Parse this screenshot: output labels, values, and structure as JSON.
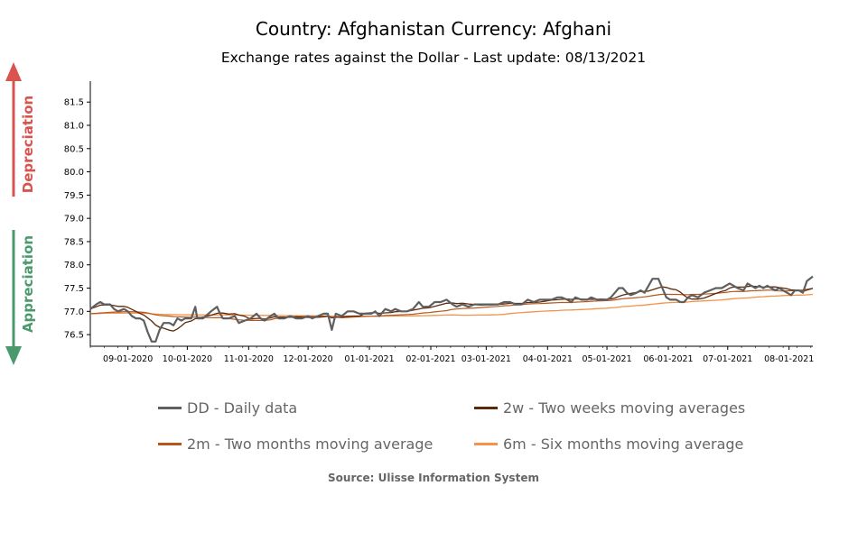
{
  "header": {
    "title": "Country: Afghanistan Currency: Afghani",
    "subtitle": "Exchange rates against the Dollar - Last update: 08/13/2021"
  },
  "indicators": {
    "depreciation": "Depreciation",
    "appreciation": "Appreciation",
    "depreciation_color": "#d9534f",
    "appreciation_color": "#4a9a6e"
  },
  "source": "Source: Ulisse Information System",
  "chart_data": {
    "type": "line",
    "title": "Country: Afghanistan Currency: Afghani",
    "subtitle": "Exchange rates against the Dollar - Last update: 08/13/2021",
    "xlabel": "",
    "ylabel": "",
    "x_range": [
      "2020-08-13",
      "2021-08-13"
    ],
    "ylim": [
      76.25,
      81.95
    ],
    "y_ticks": [
      76.5,
      77.0,
      77.5,
      78.0,
      78.5,
      79.0,
      79.5,
      80.0,
      80.5,
      81.0,
      81.5
    ],
    "y_tick_labels": [
      "76.5",
      "77.0",
      "77.5",
      "78.0",
      "78.5",
      "79.0",
      "79.5",
      "80.0",
      "80.5",
      "81.0",
      "81.5"
    ],
    "x_ticks": [
      "2020-09-01",
      "2020-10-01",
      "2020-11-01",
      "2020-12-01",
      "2021-01-01",
      "2021-02-01",
      "2021-03-01",
      "2021-04-01",
      "2021-05-01",
      "2021-06-01",
      "2021-07-01",
      "2021-08-01"
    ],
    "x_tick_labels": [
      "09-01-2020",
      "10-01-2020",
      "11-01-2020",
      "12-01-2020",
      "01-01-2021",
      "02-01-2021",
      "03-01-2021",
      "04-01-2021",
      "05-01-2021",
      "06-01-2021",
      "07-01-2021",
      "08-01-2021"
    ],
    "grid": false,
    "legend_position": "bottom",
    "series": [
      {
        "name": "DD - Daily data",
        "color": "#5f5f5f",
        "points": [
          [
            "2020-08-13",
            77.05
          ],
          [
            "2020-08-16",
            77.15
          ],
          [
            "2020-08-18",
            77.2
          ],
          [
            "2020-08-20",
            77.15
          ],
          [
            "2020-08-23",
            77.15
          ],
          [
            "2020-08-25",
            77.05
          ],
          [
            "2020-08-27",
            77.0
          ],
          [
            "2020-08-30",
            77.05
          ],
          [
            "2020-09-01",
            77.0
          ],
          [
            "2020-09-03",
            76.9
          ],
          [
            "2020-09-05",
            76.85
          ],
          [
            "2020-09-07",
            76.85
          ],
          [
            "2020-09-09",
            76.8
          ],
          [
            "2020-09-11",
            76.55
          ],
          [
            "2020-09-13",
            76.35
          ],
          [
            "2020-09-15",
            76.35
          ],
          [
            "2020-09-17",
            76.6
          ],
          [
            "2020-09-19",
            76.75
          ],
          [
            "2020-09-22",
            76.75
          ],
          [
            "2020-09-24",
            76.7
          ],
          [
            "2020-09-26",
            76.85
          ],
          [
            "2020-09-28",
            76.8
          ],
          [
            "2020-09-30",
            76.85
          ],
          [
            "2020-10-03",
            76.85
          ],
          [
            "2020-10-05",
            77.1
          ],
          [
            "2020-10-06",
            76.85
          ],
          [
            "2020-10-09",
            76.85
          ],
          [
            "2020-10-13",
            77.0
          ],
          [
            "2020-10-16",
            77.1
          ],
          [
            "2020-10-17",
            77.0
          ],
          [
            "2020-10-19",
            76.85
          ],
          [
            "2020-10-22",
            76.85
          ],
          [
            "2020-10-25",
            76.9
          ],
          [
            "2020-10-27",
            76.75
          ],
          [
            "2020-10-30",
            76.8
          ],
          [
            "2020-11-02",
            76.85
          ],
          [
            "2020-11-05",
            76.95
          ],
          [
            "2020-11-07",
            76.85
          ],
          [
            "2020-11-09",
            76.8
          ],
          [
            "2020-11-12",
            76.9
          ],
          [
            "2020-11-14",
            76.95
          ],
          [
            "2020-11-16",
            76.85
          ],
          [
            "2020-11-19",
            76.85
          ],
          [
            "2020-11-22",
            76.9
          ],
          [
            "2020-11-25",
            76.85
          ],
          [
            "2020-11-28",
            76.85
          ],
          [
            "2020-12-01",
            76.9
          ],
          [
            "2020-12-03",
            76.85
          ],
          [
            "2020-12-06",
            76.9
          ],
          [
            "2020-12-09",
            76.95
          ],
          [
            "2020-12-11",
            76.95
          ],
          [
            "2020-12-13",
            76.6
          ],
          [
            "2020-12-15",
            76.95
          ],
          [
            "2020-12-18",
            76.9
          ],
          [
            "2020-12-21",
            77.0
          ],
          [
            "2020-12-24",
            77.0
          ],
          [
            "2020-12-27",
            76.95
          ],
          [
            "2020-12-30",
            76.95
          ],
          [
            "2021-01-02",
            76.95
          ],
          [
            "2021-01-04",
            77.0
          ],
          [
            "2021-01-06",
            76.9
          ],
          [
            "2021-01-09",
            77.05
          ],
          [
            "2021-01-12",
            77.0
          ],
          [
            "2021-01-14",
            77.05
          ],
          [
            "2021-01-17",
            77.0
          ],
          [
            "2021-01-20",
            77.0
          ],
          [
            "2021-01-23",
            77.05
          ],
          [
            "2021-01-26",
            77.2
          ],
          [
            "2021-01-28",
            77.1
          ],
          [
            "2021-01-31",
            77.1
          ],
          [
            "2021-02-03",
            77.2
          ],
          [
            "2021-02-06",
            77.2
          ],
          [
            "2021-02-09",
            77.25
          ],
          [
            "2021-02-12",
            77.15
          ],
          [
            "2021-02-14",
            77.1
          ],
          [
            "2021-02-17",
            77.15
          ],
          [
            "2021-02-20",
            77.1
          ],
          [
            "2021-02-23",
            77.15
          ],
          [
            "2021-02-26",
            77.15
          ],
          [
            "2021-03-01",
            77.15
          ],
          [
            "2021-03-04",
            77.15
          ],
          [
            "2021-03-07",
            77.15
          ],
          [
            "2021-03-10",
            77.2
          ],
          [
            "2021-03-13",
            77.2
          ],
          [
            "2021-03-16",
            77.15
          ],
          [
            "2021-03-19",
            77.15
          ],
          [
            "2021-03-22",
            77.25
          ],
          [
            "2021-03-25",
            77.2
          ],
          [
            "2021-03-28",
            77.25
          ],
          [
            "2021-03-31",
            77.25
          ],
          [
            "2021-04-03",
            77.25
          ],
          [
            "2021-04-06",
            77.3
          ],
          [
            "2021-04-08",
            77.3
          ],
          [
            "2021-04-11",
            77.25
          ],
          [
            "2021-04-13",
            77.2
          ],
          [
            "2021-04-15",
            77.3
          ],
          [
            "2021-04-18",
            77.25
          ],
          [
            "2021-04-21",
            77.25
          ],
          [
            "2021-04-23",
            77.3
          ],
          [
            "2021-04-26",
            77.25
          ],
          [
            "2021-04-28",
            77.25
          ],
          [
            "2021-05-01",
            77.25
          ],
          [
            "2021-05-03",
            77.3
          ],
          [
            "2021-05-05",
            77.4
          ],
          [
            "2021-05-07",
            77.5
          ],
          [
            "2021-05-09",
            77.5
          ],
          [
            "2021-05-11",
            77.4
          ],
          [
            "2021-05-13",
            77.35
          ],
          [
            "2021-05-16",
            77.4
          ],
          [
            "2021-05-18",
            77.45
          ],
          [
            "2021-05-20",
            77.4
          ],
          [
            "2021-05-22",
            77.55
          ],
          [
            "2021-05-24",
            77.7
          ],
          [
            "2021-05-27",
            77.7
          ],
          [
            "2021-05-29",
            77.5
          ],
          [
            "2021-05-31",
            77.3
          ],
          [
            "2021-06-02",
            77.25
          ],
          [
            "2021-06-05",
            77.25
          ],
          [
            "2021-06-07",
            77.2
          ],
          [
            "2021-06-09",
            77.2
          ],
          [
            "2021-06-11",
            77.3
          ],
          [
            "2021-06-13",
            77.35
          ],
          [
            "2021-06-16",
            77.3
          ],
          [
            "2021-06-19",
            77.4
          ],
          [
            "2021-06-22",
            77.45
          ],
          [
            "2021-06-25",
            77.5
          ],
          [
            "2021-06-28",
            77.5
          ],
          [
            "2021-06-30",
            77.55
          ],
          [
            "2021-07-02",
            77.6
          ],
          [
            "2021-07-04",
            77.55
          ],
          [
            "2021-07-06",
            77.5
          ],
          [
            "2021-07-09",
            77.45
          ],
          [
            "2021-07-11",
            77.6
          ],
          [
            "2021-07-13",
            77.55
          ],
          [
            "2021-07-15",
            77.5
          ],
          [
            "2021-07-17",
            77.55
          ],
          [
            "2021-07-19",
            77.5
          ],
          [
            "2021-07-21",
            77.55
          ],
          [
            "2021-07-23",
            77.5
          ],
          [
            "2021-07-25",
            77.45
          ],
          [
            "2021-07-27",
            77.5
          ],
          [
            "2021-07-29",
            77.45
          ],
          [
            "2021-07-31",
            77.4
          ],
          [
            "2021-08-02",
            77.35
          ],
          [
            "2021-08-04",
            77.45
          ],
          [
            "2021-08-06",
            77.45
          ],
          [
            "2021-08-08",
            77.4
          ],
          [
            "2021-08-10",
            77.65
          ],
          [
            "2021-08-13",
            77.75
          ]
        ]
      },
      {
        "name": "2w - Two weeks moving averages",
        "color": "#5c2a0a",
        "points": []
      },
      {
        "name": "2m - Two months moving average",
        "color": "#b5561c",
        "points": []
      },
      {
        "name": "6m - Six months moving average",
        "color": "#f39248",
        "points": []
      }
    ]
  }
}
